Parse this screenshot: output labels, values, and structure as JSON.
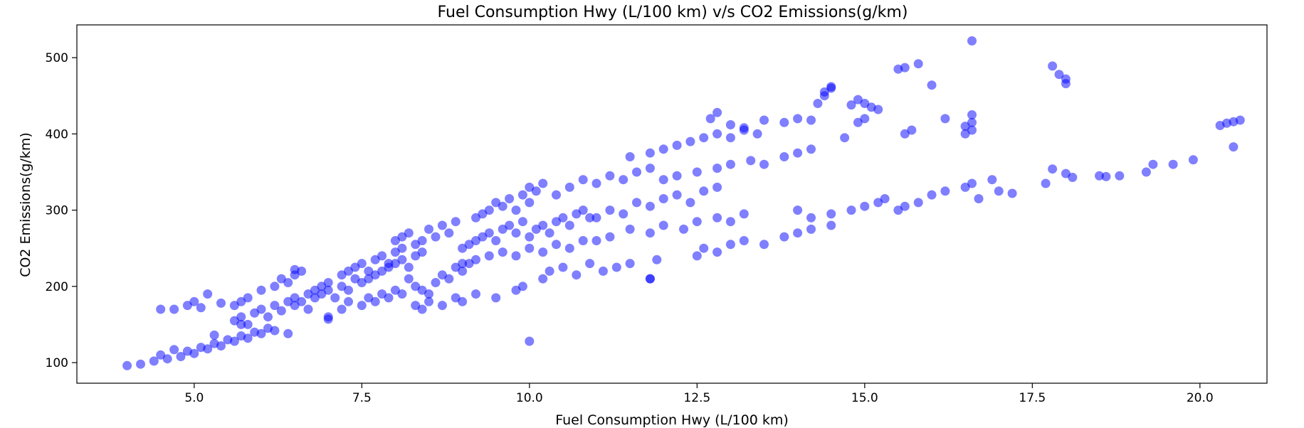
{
  "chart_data": {
    "type": "scatter",
    "title": "Fuel Consumption Hwy (L/100 km) v/s CO2 Emissions(g/km)",
    "xlabel": "Fuel Consumption Hwy (L/100 km)",
    "ylabel": "CO2 Emissions(g/km)",
    "xlim": [
      3.25,
      21.0
    ],
    "ylim": [
      73,
      543
    ],
    "xticks": [
      5.0,
      7.5,
      10.0,
      12.5,
      15.0,
      17.5,
      20.0
    ],
    "xtick_labels": [
      "5.0",
      "7.5",
      "10.0",
      "12.5",
      "15.0",
      "17.5",
      "20.0"
    ],
    "yticks": [
      100,
      200,
      300,
      400,
      500
    ],
    "ytick_labels": [
      "100",
      "200",
      "300",
      "400",
      "500"
    ],
    "grid": false,
    "marker_color": "#0000ff",
    "marker_alpha": 0.5,
    "series": [
      {
        "points": [
          [
            4.0,
            96
          ],
          [
            4.2,
            98
          ],
          [
            4.4,
            102
          ],
          [
            4.6,
            105
          ],
          [
            4.5,
            110
          ],
          [
            4.8,
            108
          ],
          [
            4.9,
            115
          ],
          [
            5.0,
            112
          ],
          [
            5.1,
            120
          ],
          [
            5.2,
            118
          ],
          [
            5.3,
            125
          ],
          [
            5.4,
            122
          ],
          [
            5.5,
            130
          ],
          [
            5.6,
            128
          ],
          [
            5.7,
            135
          ],
          [
            5.8,
            132
          ],
          [
            5.9,
            140
          ],
          [
            6.0,
            138
          ],
          [
            6.1,
            145
          ],
          [
            6.2,
            142
          ],
          [
            4.5,
            170
          ],
          [
            4.7,
            170
          ],
          [
            4.9,
            175
          ],
          [
            5.0,
            180
          ],
          [
            5.1,
            172
          ],
          [
            5.2,
            190
          ],
          [
            5.4,
            178
          ],
          [
            5.6,
            175
          ],
          [
            5.7,
            180
          ],
          [
            5.8,
            185
          ],
          [
            5.6,
            155
          ],
          [
            5.7,
            160
          ],
          [
            5.8,
            150
          ],
          [
            5.9,
            165
          ],
          [
            6.0,
            170
          ],
          [
            6.1,
            160
          ],
          [
            6.2,
            175
          ],
          [
            6.3,
            168
          ],
          [
            6.4,
            180
          ],
          [
            6.5,
            185
          ],
          [
            6.0,
            195
          ],
          [
            6.2,
            200
          ],
          [
            6.3,
            210
          ],
          [
            6.4,
            205
          ],
          [
            6.5,
            215
          ],
          [
            6.6,
            220
          ],
          [
            6.7,
            190
          ],
          [
            6.8,
            195
          ],
          [
            6.9,
            200
          ],
          [
            7.0,
            205
          ],
          [
            6.5,
            175
          ],
          [
            6.6,
            180
          ],
          [
            6.7,
            170
          ],
          [
            6.8,
            185
          ],
          [
            6.9,
            190
          ],
          [
            7.0,
            195
          ],
          [
            7.1,
            185
          ],
          [
            7.2,
            200
          ],
          [
            7.3,
            195
          ],
          [
            7.4,
            210
          ],
          [
            7.0,
            160
          ],
          [
            7.2,
            170
          ],
          [
            7.3,
            180
          ],
          [
            7.5,
            175
          ],
          [
            7.6,
            185
          ],
          [
            7.7,
            180
          ],
          [
            7.8,
            190
          ],
          [
            7.9,
            185
          ],
          [
            8.0,
            195
          ],
          [
            8.1,
            190
          ],
          [
            7.2,
            215
          ],
          [
            7.3,
            220
          ],
          [
            7.4,
            225
          ],
          [
            7.5,
            230
          ],
          [
            7.6,
            220
          ],
          [
            7.7,
            235
          ],
          [
            7.8,
            240
          ],
          [
            7.9,
            230
          ],
          [
            8.0,
            245
          ],
          [
            8.1,
            250
          ],
          [
            7.5,
            205
          ],
          [
            7.6,
            210
          ],
          [
            7.7,
            215
          ],
          [
            7.8,
            220
          ],
          [
            7.9,
            225
          ],
          [
            8.0,
            230
          ],
          [
            8.1,
            235
          ],
          [
            8.2,
            225
          ],
          [
            8.3,
            240
          ],
          [
            8.4,
            245
          ],
          [
            8.0,
            260
          ],
          [
            8.1,
            265
          ],
          [
            8.2,
            270
          ],
          [
            8.3,
            255
          ],
          [
            8.4,
            260
          ],
          [
            8.5,
            275
          ],
          [
            8.6,
            265
          ],
          [
            8.7,
            280
          ],
          [
            8.8,
            270
          ],
          [
            8.9,
            285
          ],
          [
            8.2,
            210
          ],
          [
            8.3,
            200
          ],
          [
            8.4,
            195
          ],
          [
            8.5,
            190
          ],
          [
            8.6,
            205
          ],
          [
            8.7,
            215
          ],
          [
            8.8,
            210
          ],
          [
            8.9,
            225
          ],
          [
            9.0,
            220
          ],
          [
            9.1,
            230
          ],
          [
            8.3,
            175
          ],
          [
            8.4,
            170
          ],
          [
            8.5,
            180
          ],
          [
            8.7,
            175
          ],
          [
            8.9,
            185
          ],
          [
            9.0,
            180
          ],
          [
            9.2,
            190
          ],
          [
            9.5,
            185
          ],
          [
            9.8,
            195
          ],
          [
            9.9,
            200
          ],
          [
            9.0,
            250
          ],
          [
            9.1,
            255
          ],
          [
            9.2,
            260
          ],
          [
            9.3,
            265
          ],
          [
            9.4,
            270
          ],
          [
            9.5,
            260
          ],
          [
            9.6,
            275
          ],
          [
            9.7,
            280
          ],
          [
            9.8,
            270
          ],
          [
            9.9,
            285
          ],
          [
            9.2,
            290
          ],
          [
            9.3,
            295
          ],
          [
            9.4,
            300
          ],
          [
            9.5,
            310
          ],
          [
            9.6,
            305
          ],
          [
            9.7,
            315
          ],
          [
            9.8,
            300
          ],
          [
            9.9,
            320
          ],
          [
            10.0,
            310
          ],
          [
            10.1,
            325
          ],
          [
            9.0,
            230
          ],
          [
            9.2,
            235
          ],
          [
            9.4,
            240
          ],
          [
            9.6,
            245
          ],
          [
            9.8,
            240
          ],
          [
            10.0,
            250
          ],
          [
            10.2,
            245
          ],
          [
            10.4,
            255
          ],
          [
            10.6,
            250
          ],
          [
            10.8,
            260
          ],
          [
            10.0,
            265
          ],
          [
            10.1,
            275
          ],
          [
            10.2,
            280
          ],
          [
            10.3,
            270
          ],
          [
            10.4,
            285
          ],
          [
            10.5,
            290
          ],
          [
            10.6,
            280
          ],
          [
            10.7,
            295
          ],
          [
            10.8,
            300
          ],
          [
            10.9,
            290
          ],
          [
            10.0,
            330
          ],
          [
            10.2,
            335
          ],
          [
            10.4,
            320
          ],
          [
            10.6,
            330
          ],
          [
            10.8,
            340
          ],
          [
            11.0,
            335
          ],
          [
            11.2,
            345
          ],
          [
            11.4,
            340
          ],
          [
            11.6,
            350
          ],
          [
            11.8,
            355
          ],
          [
            10.2,
            210
          ],
          [
            10.3,
            220
          ],
          [
            10.5,
            225
          ],
          [
            10.7,
            215
          ],
          [
            10.9,
            230
          ],
          [
            11.1,
            220
          ],
          [
            11.3,
            225
          ],
          [
            11.5,
            230
          ],
          [
            11.8,
            210
          ],
          [
            11.9,
            235
          ],
          [
            11.0,
            290
          ],
          [
            11.2,
            300
          ],
          [
            11.4,
            295
          ],
          [
            11.6,
            310
          ],
          [
            11.8,
            305
          ],
          [
            12.0,
            315
          ],
          [
            12.2,
            320
          ],
          [
            12.4,
            310
          ],
          [
            12.6,
            325
          ],
          [
            12.8,
            330
          ],
          [
            11.0,
            260
          ],
          [
            11.2,
            265
          ],
          [
            11.5,
            275
          ],
          [
            11.8,
            270
          ],
          [
            12.0,
            280
          ],
          [
            12.3,
            275
          ],
          [
            12.5,
            285
          ],
          [
            12.8,
            290
          ],
          [
            13.0,
            285
          ],
          [
            13.2,
            295
          ],
          [
            11.5,
            370
          ],
          [
            11.8,
            375
          ],
          [
            12.0,
            380
          ],
          [
            12.2,
            385
          ],
          [
            12.4,
            390
          ],
          [
            12.6,
            395
          ],
          [
            12.8,
            400
          ],
          [
            13.0,
            395
          ],
          [
            13.2,
            405
          ],
          [
            13.4,
            400
          ],
          [
            12.0,
            340
          ],
          [
            12.2,
            345
          ],
          [
            12.5,
            350
          ],
          [
            12.8,
            355
          ],
          [
            13.0,
            360
          ],
          [
            13.3,
            365
          ],
          [
            13.5,
            360
          ],
          [
            13.8,
            370
          ],
          [
            14.0,
            375
          ],
          [
            14.2,
            380
          ],
          [
            12.5,
            240
          ],
          [
            12.6,
            250
          ],
          [
            12.8,
            245
          ],
          [
            13.0,
            255
          ],
          [
            13.2,
            260
          ],
          [
            13.5,
            255
          ],
          [
            13.8,
            265
          ],
          [
            14.0,
            270
          ],
          [
            14.2,
            275
          ],
          [
            14.5,
            280
          ],
          [
            12.7,
            420
          ],
          [
            12.8,
            428
          ],
          [
            13.0,
            412
          ],
          [
            13.2,
            408
          ],
          [
            13.5,
            418
          ],
          [
            13.8,
            415
          ],
          [
            14.0,
            420
          ],
          [
            14.2,
            418
          ],
          [
            14.4,
            455
          ],
          [
            14.5,
            460
          ],
          [
            14.3,
            440
          ],
          [
            14.4,
            450
          ],
          [
            14.5,
            462
          ],
          [
            14.8,
            438
          ],
          [
            14.9,
            445
          ],
          [
            15.0,
            440
          ],
          [
            15.1,
            435
          ],
          [
            15.2,
            432
          ],
          [
            14.9,
            415
          ],
          [
            14.7,
            395
          ],
          [
            14.0,
            300
          ],
          [
            14.2,
            290
          ],
          [
            14.5,
            295
          ],
          [
            14.8,
            300
          ],
          [
            15.0,
            305
          ],
          [
            15.2,
            310
          ],
          [
            15.3,
            315
          ],
          [
            15.5,
            300
          ],
          [
            15.6,
            305
          ],
          [
            15.8,
            310
          ],
          [
            15.0,
            420
          ],
          [
            15.5,
            485
          ],
          [
            15.6,
            487
          ],
          [
            15.8,
            492
          ],
          [
            15.6,
            400
          ],
          [
            15.7,
            405
          ],
          [
            16.0,
            464
          ],
          [
            16.2,
            420
          ],
          [
            16.6,
            522
          ],
          [
            16.5,
            410
          ],
          [
            16.0,
            320
          ],
          [
            16.2,
            325
          ],
          [
            16.5,
            330
          ],
          [
            16.6,
            335
          ],
          [
            16.7,
            315
          ],
          [
            16.9,
            340
          ],
          [
            17.0,
            325
          ],
          [
            17.2,
            322
          ],
          [
            17.7,
            335
          ],
          [
            17.8,
            354
          ],
          [
            16.5,
            400
          ],
          [
            16.6,
            405
          ],
          [
            16.6,
            415
          ],
          [
            16.6,
            425
          ],
          [
            17.8,
            489
          ],
          [
            17.9,
            478
          ],
          [
            18.0,
            472
          ],
          [
            18.0,
            466
          ],
          [
            18.0,
            348
          ],
          [
            18.1,
            343
          ],
          [
            18.5,
            345
          ],
          [
            18.6,
            344
          ],
          [
            18.8,
            345
          ],
          [
            19.2,
            350
          ],
          [
            19.3,
            360
          ],
          [
            19.6,
            360
          ],
          [
            19.9,
            366
          ],
          [
            20.3,
            411
          ],
          [
            20.4,
            414
          ],
          [
            20.5,
            416
          ],
          [
            20.6,
            418
          ],
          [
            20.5,
            383
          ],
          [
            10.0,
            128
          ],
          [
            11.8,
            210
          ],
          [
            7.0,
            157
          ],
          [
            6.5,
            222
          ],
          [
            5.7,
            150
          ],
          [
            5.3,
            136
          ],
          [
            4.7,
            117
          ],
          [
            6.4,
            138
          ]
        ]
      }
    ]
  }
}
